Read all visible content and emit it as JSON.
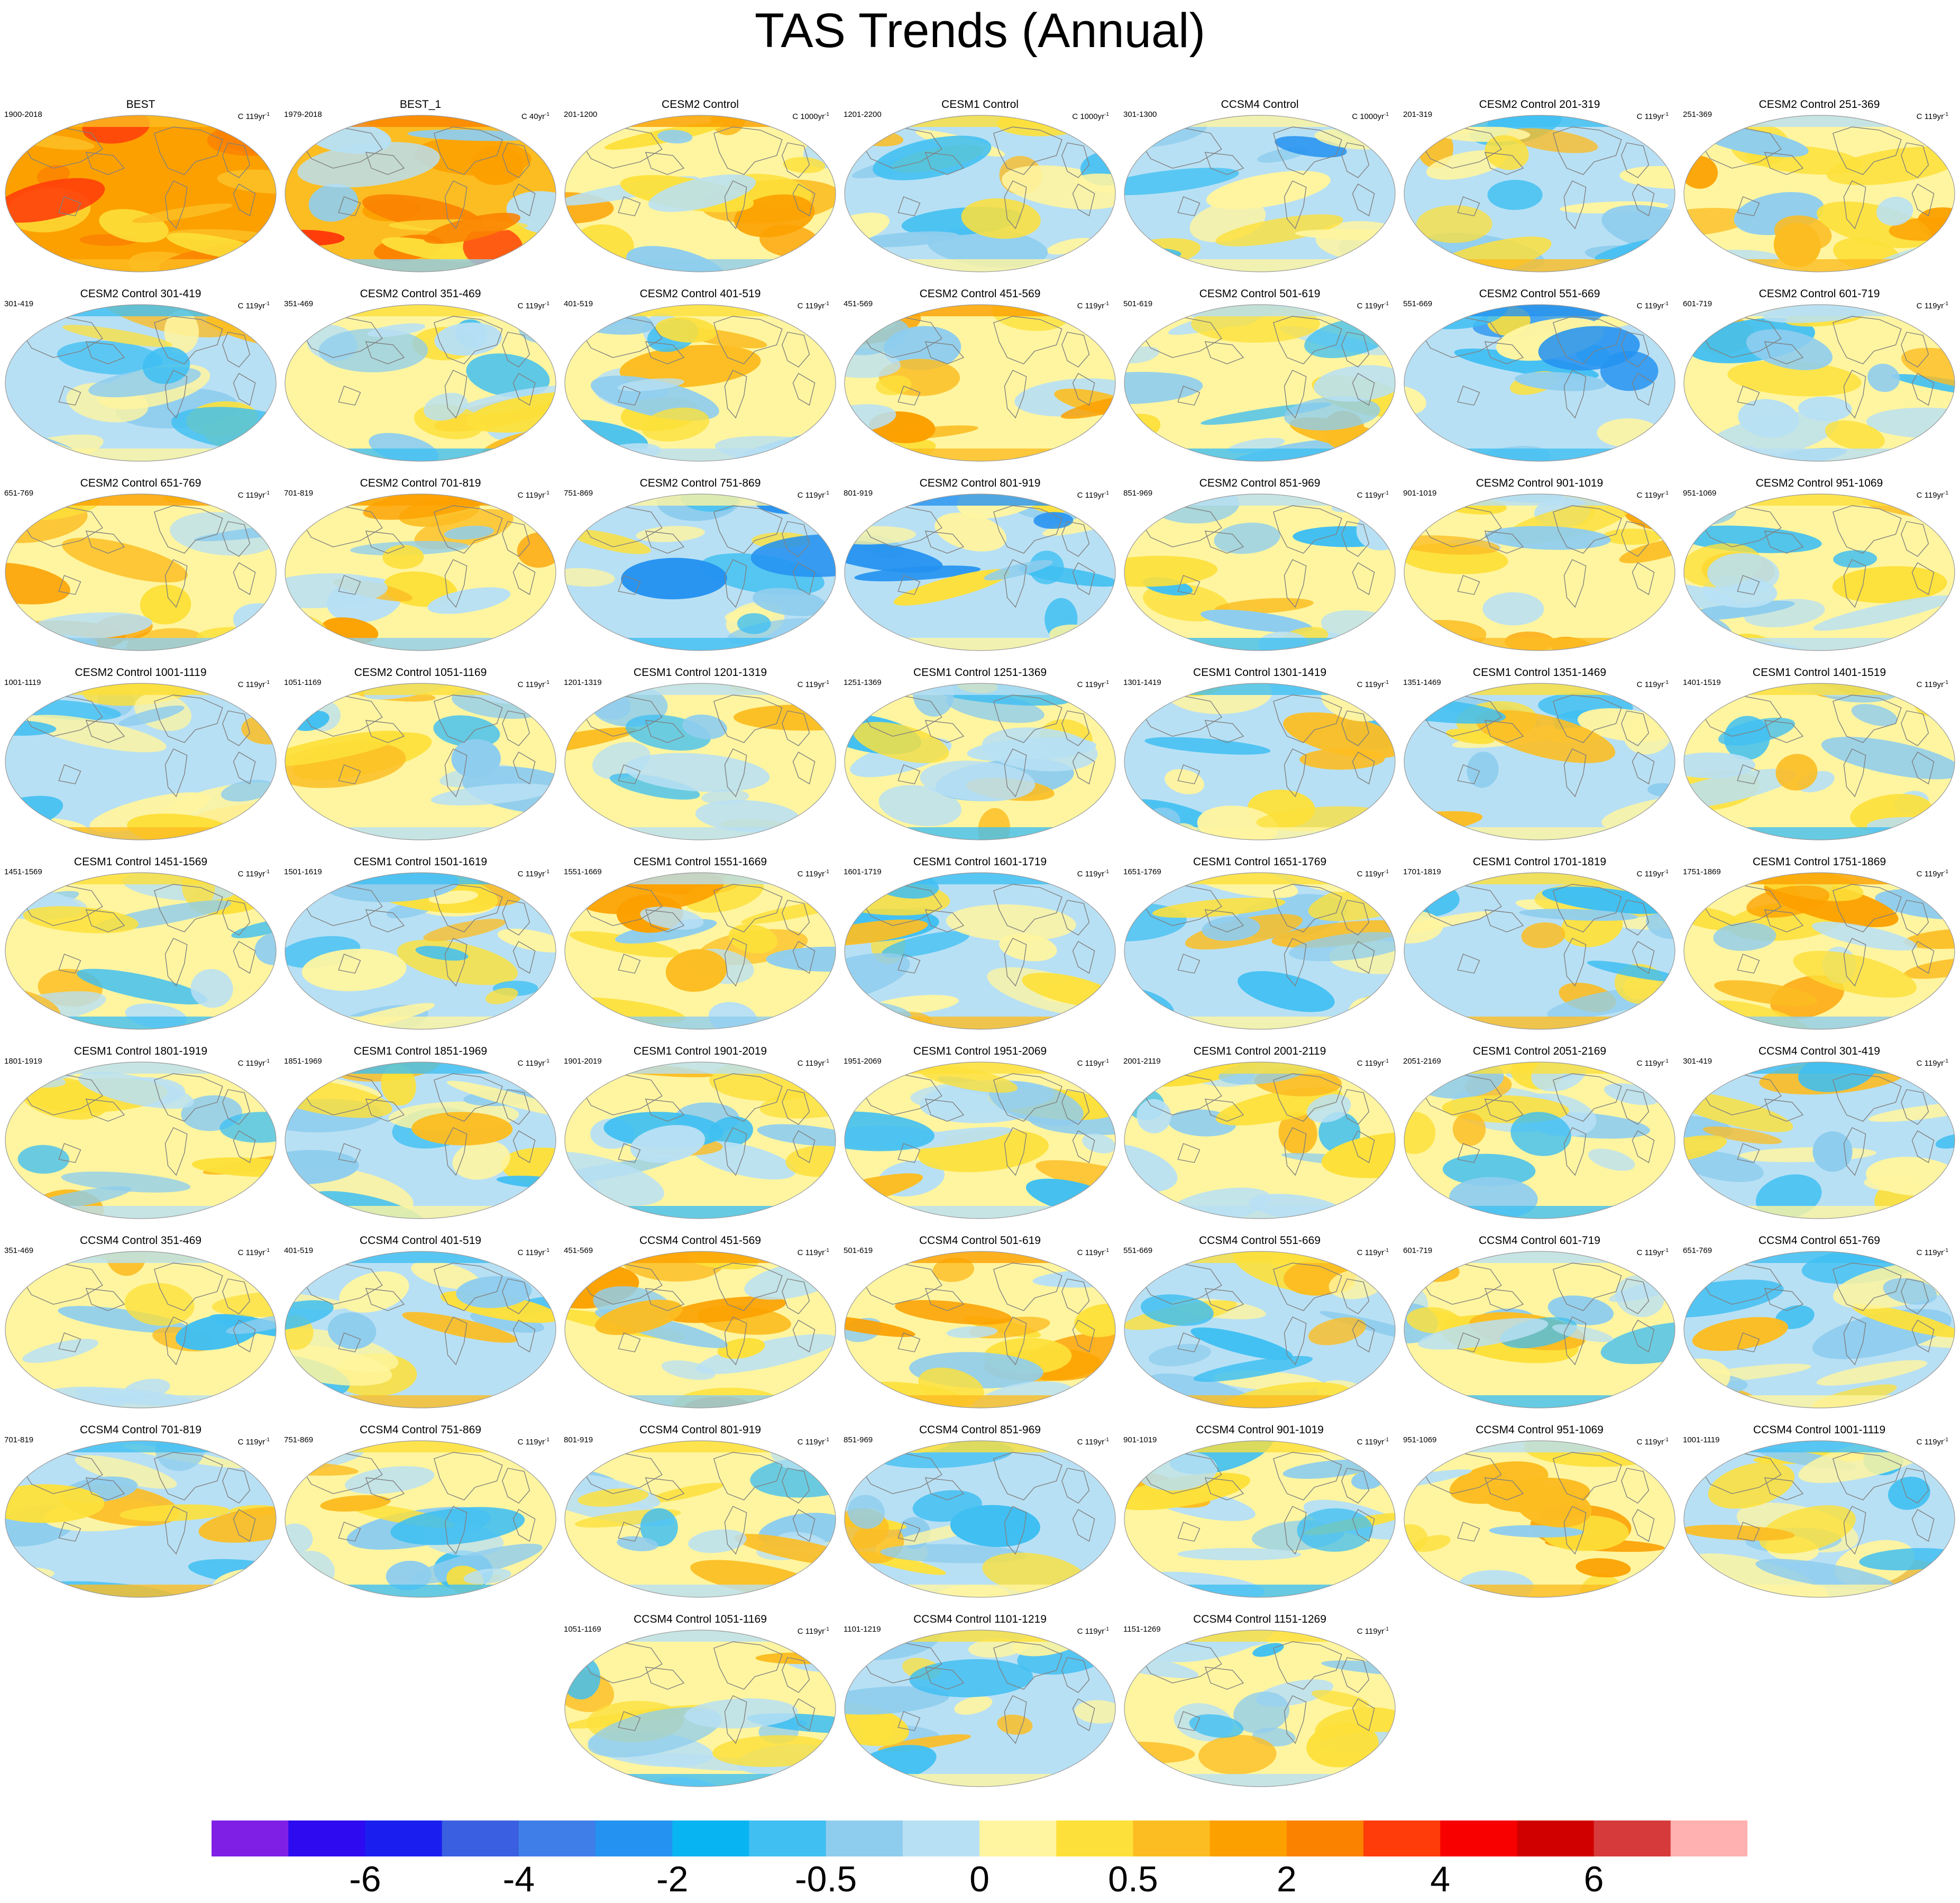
{
  "title": "TAS Trends (Annual)",
  "colorbar": {
    "colors": [
      "#7f1fe6",
      "#2e0af0",
      "#1a1ff0",
      "#3a5fe0",
      "#3f7ee8",
      "#2492f0",
      "#09b4f2",
      "#40bff2",
      "#8fcdee",
      "#b8e0f4",
      "#fff5a0",
      "#fde03a",
      "#fcbd22",
      "#fca000",
      "#fb8200",
      "#ff3c0a",
      "#f90000",
      "#d10000",
      "#d63a3a",
      "#ffb0b0"
    ],
    "labels": [
      "-6",
      "-4",
      "-2",
      "-0.5",
      "0",
      "0.5",
      "2",
      "4",
      "6"
    ]
  },
  "panels": [
    {
      "title": "BEST",
      "left": "1900-2018",
      "right": "C 119yr",
      "scheme": "best"
    },
    {
      "title": "BEST_1",
      "left": "1979-2018",
      "right": "C 40yr",
      "scheme": "best1"
    },
    {
      "title": "CESM2 Control",
      "left": "201-1200",
      "right": "C 1000yr",
      "scheme": "warm"
    },
    {
      "title": "CESM1 Control",
      "left": "1201-2200",
      "right": "C 1000yr",
      "scheme": "cool"
    },
    {
      "title": "CCSM4 Control",
      "left": "301-1300",
      "right": "C 1000yr",
      "scheme": "cold"
    },
    {
      "title": "CESM2 Control 201-319",
      "left": "201-319",
      "right": "C 119yr",
      "scheme": "cool"
    },
    {
      "title": "CESM2 Control 251-369",
      "left": "251-369",
      "right": "C 119yr",
      "scheme": "warm"
    },
    {
      "title": "CESM2 Control 301-419",
      "left": "301-419",
      "right": "C 119yr",
      "scheme": "cool"
    },
    {
      "title": "CESM2 Control 351-469",
      "left": "351-469",
      "right": "C 119yr",
      "scheme": "mixed"
    },
    {
      "title": "CESM2 Control 401-519",
      "left": "401-519",
      "right": "C 119yr",
      "scheme": "mixed"
    },
    {
      "title": "CESM2 Control 451-569",
      "left": "451-569",
      "right": "C 119yr",
      "scheme": "warm"
    },
    {
      "title": "CESM2 Control 501-619",
      "left": "501-619",
      "right": "C 119yr",
      "scheme": "mixed"
    },
    {
      "title": "CESM2 Control 551-669",
      "left": "551-669",
      "right": "C 119yr",
      "scheme": "cold"
    },
    {
      "title": "CESM2 Control 601-719",
      "left": "601-719",
      "right": "C 119yr",
      "scheme": "mixed"
    },
    {
      "title": "CESM2 Control 651-769",
      "left": "651-769",
      "right": "C 119yr",
      "scheme": "warm"
    },
    {
      "title": "CESM2 Control 701-819",
      "left": "701-819",
      "right": "C 119yr",
      "scheme": "warm"
    },
    {
      "title": "CESM2 Control 751-869",
      "left": "751-869",
      "right": "C 119yr",
      "scheme": "cold"
    },
    {
      "title": "CESM2 Control 801-919",
      "left": "801-919",
      "right": "C 119yr",
      "scheme": "cold"
    },
    {
      "title": "CESM2 Control 851-969",
      "left": "851-969",
      "right": "C 119yr",
      "scheme": "mixed"
    },
    {
      "title": "CESM2 Control 901-1019",
      "left": "901-1019",
      "right": "C 119yr",
      "scheme": "warm"
    },
    {
      "title": "CESM2 Control 951-1069",
      "left": "951-1069",
      "right": "C 119yr",
      "scheme": "mixed"
    },
    {
      "title": "CESM2 Control 1001-1119",
      "left": "1001-1119",
      "right": "C 119yr",
      "scheme": "cool"
    },
    {
      "title": "CESM2 Control 1051-1169",
      "left": "1051-1169",
      "right": "C 119yr",
      "scheme": "mixed"
    },
    {
      "title": "CESM1 Control 1201-1319",
      "left": "1201-1319",
      "right": "C 119yr",
      "scheme": "mixed"
    },
    {
      "title": "CESM1 Control 1251-1369",
      "left": "1251-1369",
      "right": "C 119yr",
      "scheme": "mixed"
    },
    {
      "title": "CESM1 Control 1301-1419",
      "left": "1301-1419",
      "right": "C 119yr",
      "scheme": "cool"
    },
    {
      "title": "CESM1 Control 1351-1469",
      "left": "1351-1469",
      "right": "C 119yr",
      "scheme": "cool"
    },
    {
      "title": "CESM1 Control 1401-1519",
      "left": "1401-1519",
      "right": "C 119yr",
      "scheme": "mixed"
    },
    {
      "title": "CESM1 Control 1451-1569",
      "left": "1451-1569",
      "right": "C 119yr",
      "scheme": "mixed"
    },
    {
      "title": "CESM1 Control 1501-1619",
      "left": "1501-1619",
      "right": "C 119yr",
      "scheme": "cool"
    },
    {
      "title": "CESM1 Control 1551-1669",
      "left": "1551-1669",
      "right": "C 119yr",
      "scheme": "warm"
    },
    {
      "title": "CESM1 Control 1601-1719",
      "left": "1601-1719",
      "right": "C 119yr",
      "scheme": "cool"
    },
    {
      "title": "CESM1 Control 1651-1769",
      "left": "1651-1769",
      "right": "C 119yr",
      "scheme": "cool"
    },
    {
      "title": "CESM1 Control 1701-1819",
      "left": "1701-1819",
      "right": "C 119yr",
      "scheme": "cool"
    },
    {
      "title": "CESM1 Control 1751-1869",
      "left": "1751-1869",
      "right": "C 119yr",
      "scheme": "warm"
    },
    {
      "title": "CESM1 Control 1801-1919",
      "left": "1801-1919",
      "right": "C 119yr",
      "scheme": "mixed"
    },
    {
      "title": "CESM1 Control 1851-1969",
      "left": "1851-1969",
      "right": "C 119yr",
      "scheme": "cool"
    },
    {
      "title": "CESM1 Control 1901-2019",
      "left": "1901-2019",
      "right": "C 119yr",
      "scheme": "mixed"
    },
    {
      "title": "CESM1 Control 1951-2069",
      "left": "1951-2069",
      "right": "C 119yr",
      "scheme": "mixed"
    },
    {
      "title": "CESM1 Control 2001-2119",
      "left": "2001-2119",
      "right": "C 119yr",
      "scheme": "mixed"
    },
    {
      "title": "CESM1 Control 2051-2169",
      "left": "2051-2169",
      "right": "C 119yr",
      "scheme": "mixed"
    },
    {
      "title": "CCSM4 Control 301-419",
      "left": "301-419",
      "right": "C 119yr",
      "scheme": "cool"
    },
    {
      "title": "CCSM4 Control 351-469",
      "left": "351-469",
      "right": "C 119yr",
      "scheme": "mixed"
    },
    {
      "title": "CCSM4 Control 401-519",
      "left": "401-519",
      "right": "C 119yr",
      "scheme": "cool"
    },
    {
      "title": "CCSM4 Control 451-569",
      "left": "451-569",
      "right": "C 119yr",
      "scheme": "warm"
    },
    {
      "title": "CCSM4 Control 501-619",
      "left": "501-619",
      "right": "C 119yr",
      "scheme": "warm"
    },
    {
      "title": "CCSM4 Control 551-669",
      "left": "551-669",
      "right": "C 119yr",
      "scheme": "cool"
    },
    {
      "title": "CCSM4 Control 601-719",
      "left": "601-719",
      "right": "C 119yr",
      "scheme": "mixed"
    },
    {
      "title": "CCSM4 Control 651-769",
      "left": "651-769",
      "right": "C 119yr",
      "scheme": "cool"
    },
    {
      "title": "CCSM4 Control 701-819",
      "left": "701-819",
      "right": "C 119yr",
      "scheme": "cool"
    },
    {
      "title": "CCSM4 Control 751-869",
      "left": "751-869",
      "right": "C 119yr",
      "scheme": "mixed"
    },
    {
      "title": "CCSM4 Control 801-919",
      "left": "801-919",
      "right": "C 119yr",
      "scheme": "mixed"
    },
    {
      "title": "CCSM4 Control 851-969",
      "left": "851-969",
      "right": "C 119yr",
      "scheme": "cool"
    },
    {
      "title": "CCSM4 Control 901-1019",
      "left": "901-1019",
      "right": "C 119yr",
      "scheme": "mixed"
    },
    {
      "title": "CCSM4 Control 951-1069",
      "left": "951-1069",
      "right": "C 119yr",
      "scheme": "warm"
    },
    {
      "title": "CCSM4 Control 1001-1119",
      "left": "1001-1119",
      "right": "C 119yr",
      "scheme": "cool"
    },
    {
      "title": "CCSM4 Control 1051-1169",
      "left": "1051-1169",
      "right": "C 119yr",
      "scheme": "mixed"
    },
    {
      "title": "CCSM4 Control 1101-1219",
      "left": "1101-1219",
      "right": "C 119yr",
      "scheme": "cool"
    },
    {
      "title": "CCSM4 Control 1151-1269",
      "left": "1151-1269",
      "right": "C 119yr",
      "scheme": "mixed"
    }
  ]
}
